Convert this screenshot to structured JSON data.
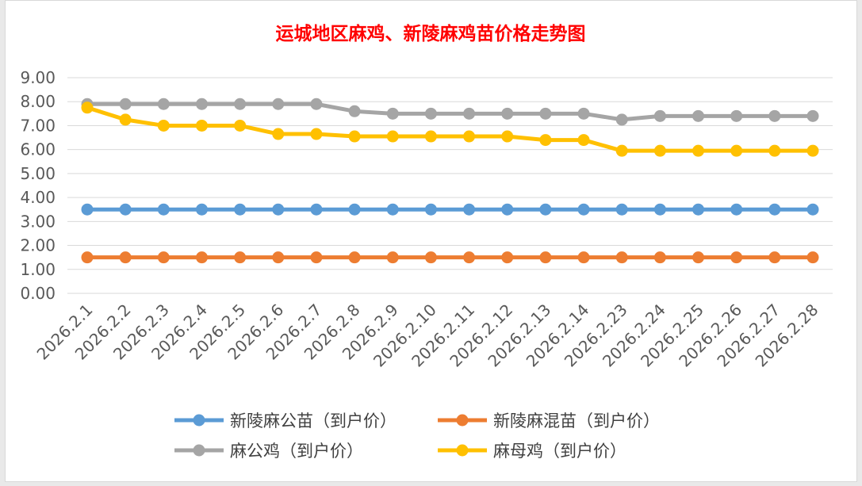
{
  "chart_data": {
    "type": "line",
    "title": "运城地区麻鸡、新陵麻鸡苗价格走势图",
    "xlabel": "",
    "ylabel": "",
    "ylim": [
      0,
      9
    ],
    "yticks": [
      "0.00",
      "1.00",
      "2.00",
      "3.00",
      "4.00",
      "5.00",
      "6.00",
      "7.00",
      "8.00",
      "9.00"
    ],
    "grid": true,
    "legend_position": "bottom",
    "categories": [
      "2026.2.1",
      "2026.2.2",
      "2026.2.3",
      "2026.2.4",
      "2026.2.5",
      "2026.2.6",
      "2026.2.7",
      "2026.2.8",
      "2026.2.9",
      "2026.2.10",
      "2026.2.11",
      "2026.2.12",
      "2026.2.13",
      "2026.2.14",
      "2026.2.23",
      "2026.2.24",
      "2026.2.25",
      "2026.2.26",
      "2026.2.27",
      "2026.2.28"
    ],
    "series": [
      {
        "name": "新陵麻公苗（到户价）",
        "color": "#5b9bd5",
        "values": [
          3.5,
          3.5,
          3.5,
          3.5,
          3.5,
          3.5,
          3.5,
          3.5,
          3.5,
          3.5,
          3.5,
          3.5,
          3.5,
          3.5,
          3.5,
          3.5,
          3.5,
          3.5,
          3.5,
          3.5
        ]
      },
      {
        "name": "新陵麻混苗（到户价）",
        "color": "#ed7d31",
        "values": [
          1.5,
          1.5,
          1.5,
          1.5,
          1.5,
          1.5,
          1.5,
          1.5,
          1.5,
          1.5,
          1.5,
          1.5,
          1.5,
          1.5,
          1.5,
          1.5,
          1.5,
          1.5,
          1.5,
          1.5
        ]
      },
      {
        "name": "麻公鸡（到户价）",
        "color": "#a5a5a5",
        "values": [
          7.9,
          7.9,
          7.9,
          7.9,
          7.9,
          7.9,
          7.9,
          7.6,
          7.5,
          7.5,
          7.5,
          7.5,
          7.5,
          7.5,
          7.25,
          7.4,
          7.4,
          7.4,
          7.4,
          7.4
        ]
      },
      {
        "name": "麻母鸡（到户价）",
        "color": "#ffc000",
        "values": [
          7.75,
          7.25,
          7.0,
          7.0,
          7.0,
          6.65,
          6.65,
          6.55,
          6.55,
          6.55,
          6.55,
          6.55,
          6.4,
          6.4,
          5.95,
          5.95,
          5.95,
          5.95,
          5.95,
          5.95
        ]
      }
    ]
  }
}
